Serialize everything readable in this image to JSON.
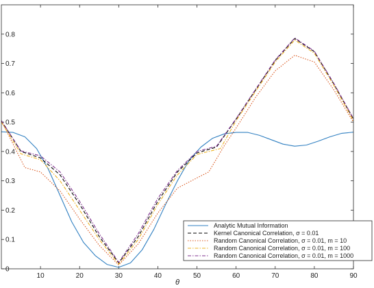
{
  "chart_data": {
    "type": "line",
    "xlabel": "θ",
    "ylabel": "",
    "xlim": [
      0,
      90
    ],
    "ylim": [
      0,
      0.9
    ],
    "x_ticks": [
      10,
      20,
      30,
      40,
      50,
      60,
      70,
      80,
      90
    ],
    "y_ticks": [
      0,
      0.1,
      0.2,
      0.3,
      0.4,
      0.5,
      0.6,
      0.7,
      0.8
    ],
    "grid": false,
    "legend_position": "bottom-right",
    "series": [
      {
        "name": "Analytic Mutual Information",
        "color": "#2f7fc1",
        "dash": "solid",
        "points": [
          [
            0,
            0.467
          ],
          [
            3,
            0.465
          ],
          [
            6,
            0.45
          ],
          [
            9,
            0.41
          ],
          [
            12,
            0.34
          ],
          [
            15,
            0.25
          ],
          [
            18,
            0.16
          ],
          [
            21,
            0.09
          ],
          [
            24,
            0.045
          ],
          [
            27,
            0.015
          ],
          [
            30,
            0.005
          ],
          [
            33,
            0.02
          ],
          [
            36,
            0.065
          ],
          [
            39,
            0.135
          ],
          [
            42,
            0.22
          ],
          [
            45,
            0.3
          ],
          [
            48,
            0.37
          ],
          [
            51,
            0.415
          ],
          [
            54,
            0.445
          ],
          [
            57,
            0.46
          ],
          [
            60,
            0.465
          ],
          [
            63,
            0.465
          ],
          [
            66,
            0.455
          ],
          [
            69,
            0.44
          ],
          [
            72,
            0.425
          ],
          [
            75,
            0.418
          ],
          [
            78,
            0.422
          ],
          [
            81,
            0.435
          ],
          [
            84,
            0.45
          ],
          [
            87,
            0.462
          ],
          [
            90,
            0.466
          ]
        ]
      },
      {
        "name": "Kernel Canonical Correlation, σ = 0.01",
        "color": "#000000",
        "dash": "dash",
        "points": [
          [
            0,
            0.505
          ],
          [
            5,
            0.4
          ],
          [
            10,
            0.378
          ],
          [
            15,
            0.32
          ],
          [
            20,
            0.22
          ],
          [
            25,
            0.11
          ],
          [
            30,
            0.02
          ],
          [
            35,
            0.11
          ],
          [
            40,
            0.23
          ],
          [
            45,
            0.33
          ],
          [
            50,
            0.395
          ],
          [
            55,
            0.415
          ],
          [
            60,
            0.51
          ],
          [
            65,
            0.61
          ],
          [
            70,
            0.71
          ],
          [
            75,
            0.785
          ],
          [
            80,
            0.74
          ],
          [
            85,
            0.63
          ],
          [
            90,
            0.51
          ]
        ]
      },
      {
        "name": "Random Canonical Correlation, σ = 0.01, m = 10",
        "color": "#d95319",
        "dash": "dot",
        "points": [
          [
            0,
            0.505
          ],
          [
            6,
            0.345
          ],
          [
            10,
            0.33
          ],
          [
            15,
            0.265
          ],
          [
            20,
            0.17
          ],
          [
            25,
            0.08
          ],
          [
            30,
            0.013
          ],
          [
            35,
            0.085
          ],
          [
            40,
            0.19
          ],
          [
            45,
            0.275
          ],
          [
            50,
            0.31
          ],
          [
            53,
            0.33
          ],
          [
            57,
            0.42
          ],
          [
            60,
            0.48
          ],
          [
            65,
            0.585
          ],
          [
            70,
            0.675
          ],
          [
            75,
            0.728
          ],
          [
            80,
            0.705
          ],
          [
            85,
            0.61
          ],
          [
            90,
            0.5
          ]
        ]
      },
      {
        "name": "Random Canonical Correlation, σ = 0.01, m = 100",
        "color": "#edb120",
        "dash": "dashdot",
        "points": [
          [
            0,
            0.5
          ],
          [
            5,
            0.392
          ],
          [
            10,
            0.372
          ],
          [
            15,
            0.3
          ],
          [
            20,
            0.2
          ],
          [
            25,
            0.1
          ],
          [
            30,
            0.016
          ],
          [
            35,
            0.1
          ],
          [
            40,
            0.22
          ],
          [
            45,
            0.32
          ],
          [
            50,
            0.39
          ],
          [
            56,
            0.41
          ],
          [
            60,
            0.505
          ],
          [
            65,
            0.605
          ],
          [
            70,
            0.705
          ],
          [
            75,
            0.78
          ],
          [
            80,
            0.735
          ],
          [
            85,
            0.625
          ],
          [
            90,
            0.505
          ]
        ]
      },
      {
        "name": "Random Canonical Correlation, σ = 0.01, m = 1000",
        "color": "#7e2f8e",
        "dash": "dashdot",
        "points": [
          [
            0,
            0.505
          ],
          [
            5,
            0.402
          ],
          [
            10,
            0.385
          ],
          [
            15,
            0.33
          ],
          [
            20,
            0.23
          ],
          [
            25,
            0.12
          ],
          [
            30,
            0.022
          ],
          [
            35,
            0.12
          ],
          [
            40,
            0.24
          ],
          [
            45,
            0.335
          ],
          [
            50,
            0.4
          ],
          [
            55,
            0.418
          ],
          [
            60,
            0.512
          ],
          [
            65,
            0.612
          ],
          [
            70,
            0.712
          ],
          [
            75,
            0.787
          ],
          [
            80,
            0.742
          ],
          [
            85,
            0.632
          ],
          [
            90,
            0.512
          ]
        ]
      }
    ]
  }
}
